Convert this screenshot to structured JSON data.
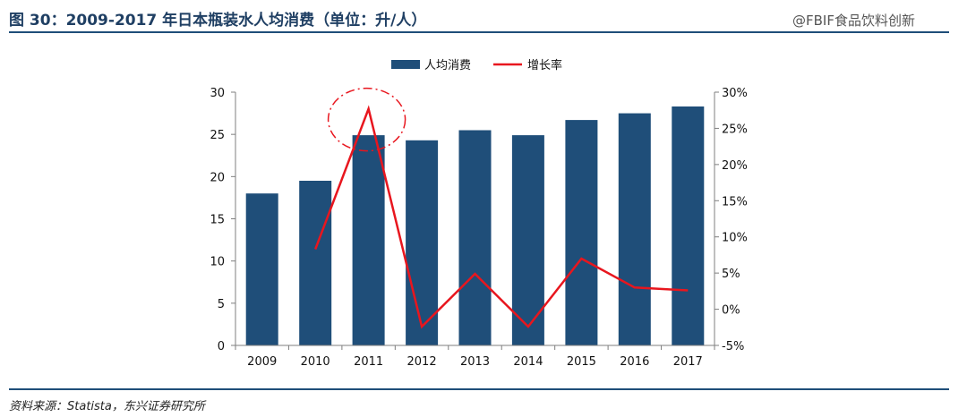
{
  "header": {
    "title": "图 30：2009-2017 年日本瓶装水人均消费（单位：升/人）",
    "watermark": "@FBIF食品饮料创新"
  },
  "source": "资料来源：Statista，东兴证券研究所",
  "colors": {
    "bar": "#1f4e79",
    "line": "#e8161e",
    "rule": "#1f4e79",
    "highlight_circle": "#e8161e"
  },
  "chart_data": {
    "type": "bar",
    "categories": [
      "2009",
      "2010",
      "2011",
      "2012",
      "2013",
      "2014",
      "2015",
      "2016",
      "2017"
    ],
    "series": [
      {
        "name": "人均消费",
        "type": "bar",
        "axis": "left",
        "values": [
          18.0,
          19.5,
          24.9,
          24.3,
          25.5,
          24.9,
          26.7,
          27.5,
          28.3
        ]
      },
      {
        "name": "增长率",
        "type": "line",
        "axis": "right",
        "values": [
          null,
          8.3,
          27.7,
          -2.4,
          4.9,
          -2.4,
          7.0,
          3.0,
          2.6
        ]
      }
    ],
    "ylim": [
      0,
      30
    ],
    "yticks": [
      "0",
      "5",
      "10",
      "15",
      "20",
      "25",
      "30"
    ],
    "y2lim": [
      -5,
      30
    ],
    "y2ticks": [
      "-5%",
      "0%",
      "5%",
      "10%",
      "15%",
      "20%",
      "25%",
      "30%"
    ],
    "legend_position": "top-center",
    "grid": false,
    "annotation": "dashed circle highlighting 2011 growth peak"
  }
}
